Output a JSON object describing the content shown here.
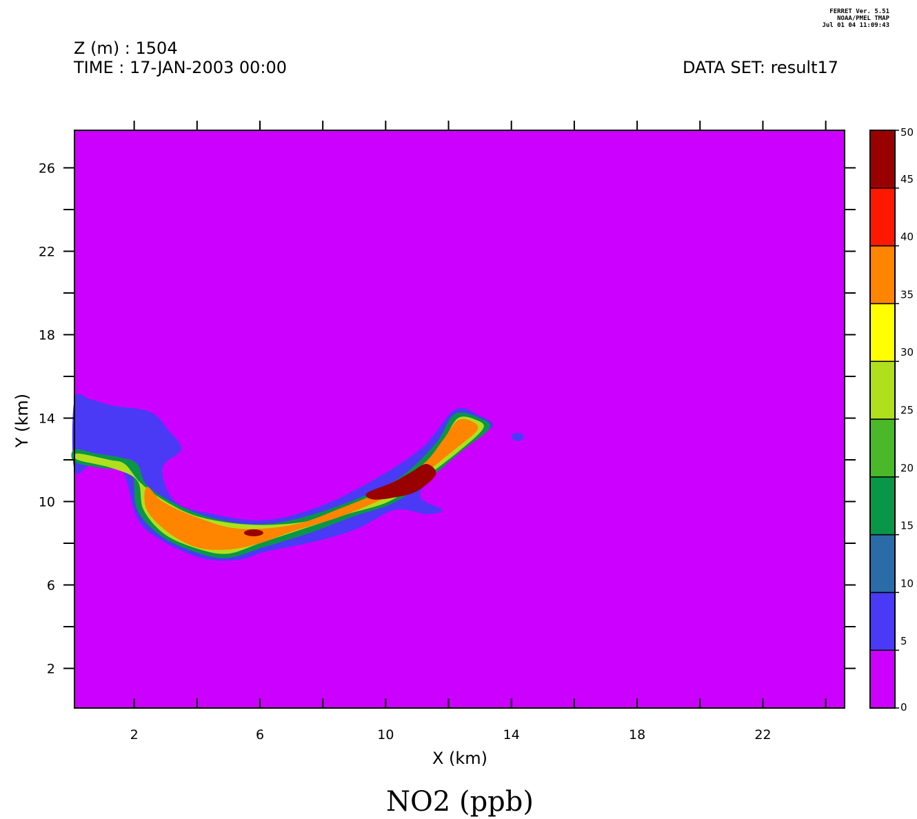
{
  "header": {
    "z_line": "Z (m) : 1504",
    "time_line": "TIME : 17-JAN-2003 00:00",
    "dataset_line": "DATA SET: result17",
    "stamp": [
      "FERRET Ver. 5.51",
      "NOAA/PMEL TMAP",
      "Jul 01 04 11:09:43"
    ]
  },
  "chart_data": {
    "type": "heatmap",
    "title": "NO2 (ppb)",
    "xlabel": "X (km)",
    "ylabel": "Y (km)",
    "xlim": [
      0.1,
      24.6
    ],
    "ylim": [
      0.1,
      27.8
    ],
    "x_ticks": [
      2,
      6,
      10,
      14,
      18,
      22
    ],
    "y_ticks": [
      2,
      6,
      10,
      14,
      18,
      22,
      26
    ],
    "grid": false,
    "colorbar": {
      "levels": [
        0,
        5,
        10,
        15,
        20,
        25,
        30,
        35,
        40,
        45,
        50
      ],
      "colors": [
        "#cc00ff",
        "#4a3af5",
        "#2a6ca8",
        "#0a9648",
        "#4ab828",
        "#b0df1e",
        "#ffff00",
        "#ff8400",
        "#ff1800",
        "#990000"
      ]
    },
    "plume": {
      "description_levels": [
        5,
        15,
        25,
        35,
        45
      ],
      "band_5": [
        [
          0.1,
          14.9
        ],
        [
          0.6,
          14.9
        ],
        [
          1.3,
          14.6
        ],
        [
          2.5,
          14.3
        ],
        [
          3.1,
          13.4
        ],
        [
          3.5,
          12.5
        ],
        [
          2.9,
          11.6
        ],
        [
          3.3,
          10.0
        ],
        [
          4.5,
          9.4
        ],
        [
          6.0,
          9.1
        ],
        [
          7.4,
          9.5
        ],
        [
          9.1,
          10.6
        ],
        [
          11.1,
          12.5
        ],
        [
          12.2,
          14.4
        ],
        [
          13.0,
          14.1
        ],
        [
          13.4,
          13.6
        ],
        [
          12.6,
          12.9
        ],
        [
          11.8,
          12.0
        ],
        [
          11.4,
          11.2
        ],
        [
          11.1,
          10.2
        ],
        [
          11.8,
          9.6
        ],
        [
          11.3,
          9.4
        ],
        [
          10.3,
          9.6
        ],
        [
          9.1,
          8.7
        ],
        [
          7.8,
          8.1
        ],
        [
          6.2,
          7.6
        ],
        [
          5.3,
          7.2
        ],
        [
          4.1,
          7.3
        ],
        [
          2.8,
          8.2
        ],
        [
          2.1,
          9.2
        ],
        [
          1.6,
          11.5
        ],
        [
          0.7,
          11.8
        ],
        [
          0.1,
          11.5
        ]
      ],
      "band_15": [
        [
          0.1,
          12.5
        ],
        [
          0.8,
          12.3
        ],
        [
          1.6,
          12.1
        ],
        [
          2.1,
          11.8
        ],
        [
          2.4,
          10.8
        ],
        [
          3.3,
          9.9
        ],
        [
          4.5,
          9.2
        ],
        [
          6.0,
          8.9
        ],
        [
          7.5,
          9.3
        ],
        [
          9.2,
          10.2
        ],
        [
          10.5,
          11.2
        ],
        [
          11.6,
          12.8
        ],
        [
          12.2,
          14.2
        ],
        [
          13.0,
          14.0
        ],
        [
          13.3,
          13.5
        ],
        [
          12.4,
          12.4
        ],
        [
          11.3,
          11.0
        ],
        [
          10.2,
          9.9
        ],
        [
          9.0,
          9.3
        ],
        [
          7.6,
          8.5
        ],
        [
          6.1,
          7.8
        ],
        [
          5.0,
          7.3
        ],
        [
          4.1,
          7.5
        ],
        [
          2.9,
          8.3
        ],
        [
          2.1,
          9.6
        ],
        [
          1.9,
          11.4
        ],
        [
          1.0,
          11.6
        ],
        [
          0.1,
          11.9
        ]
      ],
      "band_25": [
        [
          0.2,
          12.3
        ],
        [
          1.2,
          12.0
        ],
        [
          1.7,
          11.8
        ],
        [
          2.2,
          10.9
        ],
        [
          2.9,
          10.1
        ],
        [
          4.0,
          9.3
        ],
        [
          5.6,
          8.9
        ],
        [
          7.3,
          9.0
        ],
        [
          8.7,
          9.6
        ],
        [
          10.0,
          10.5
        ],
        [
          11.2,
          11.7
        ],
        [
          11.8,
          12.8
        ],
        [
          12.3,
          14.0
        ],
        [
          12.9,
          13.9
        ],
        [
          13.1,
          13.5
        ],
        [
          12.4,
          12.5
        ],
        [
          11.2,
          11.1
        ],
        [
          10.1,
          10.0
        ],
        [
          8.8,
          9.4
        ],
        [
          7.4,
          8.7
        ],
        [
          6.0,
          8.0
        ],
        [
          5.0,
          7.5
        ],
        [
          4.1,
          7.7
        ],
        [
          3.0,
          8.4
        ],
        [
          2.3,
          9.6
        ],
        [
          2.1,
          11.0
        ],
        [
          1.3,
          11.6
        ],
        [
          0.2,
          12.0
        ]
      ],
      "band_35": [
        [
          2.4,
          10.7
        ],
        [
          2.9,
          10.0
        ],
        [
          3.9,
          9.3
        ],
        [
          5.3,
          8.7
        ],
        [
          7.1,
          8.9
        ],
        [
          8.6,
          9.7
        ],
        [
          10.0,
          10.6
        ],
        [
          11.2,
          11.8
        ],
        [
          11.8,
          12.9
        ],
        [
          12.3,
          13.9
        ],
        [
          12.8,
          13.8
        ],
        [
          12.9,
          13.4
        ],
        [
          12.2,
          12.5
        ],
        [
          11.1,
          11.2
        ],
        [
          10.0,
          10.2
        ],
        [
          8.6,
          9.3
        ],
        [
          7.1,
          8.6
        ],
        [
          6.0,
          8.0
        ],
        [
          5.0,
          7.7
        ],
        [
          4.0,
          7.8
        ],
        [
          3.1,
          8.5
        ],
        [
          2.4,
          9.6
        ]
      ],
      "band_45": [
        [
          9.4,
          10.4
        ],
        [
          10.2,
          10.9
        ],
        [
          10.8,
          11.4
        ],
        [
          11.3,
          11.8
        ],
        [
          11.6,
          11.3
        ],
        [
          11.0,
          10.5
        ],
        [
          10.3,
          10.2
        ],
        [
          9.6,
          10.1
        ]
      ],
      "spot_45": [
        5.8,
        8.5
      ],
      "blob_5": [
        14.2,
        13.1
      ]
    }
  }
}
